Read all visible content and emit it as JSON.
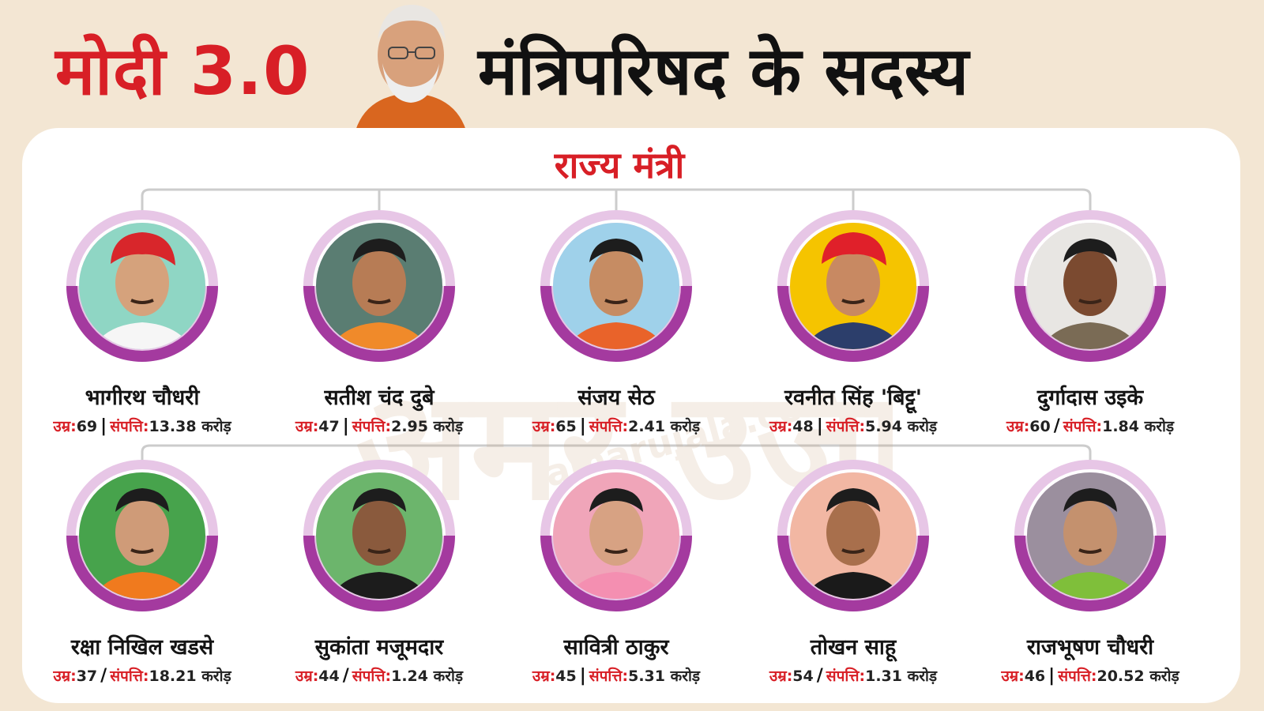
{
  "header": {
    "title_red": "मोदी 3.0",
    "title_black": "मंत्रिपरिषद के सदस्य",
    "leader_portrait": "narendra-modi-portrait"
  },
  "section": {
    "title": "राज्य मंत्री"
  },
  "labels": {
    "age": "उम्र:",
    "assets": "संपत्ति:",
    "crore": "करोड़"
  },
  "watermark": {
    "brand": "अमर उजाला",
    "site": "amarujala.com"
  },
  "colors": {
    "accent_red": "#d81f26",
    "ring_purple": "#a43a9f",
    "ring_light": "#e7c6e6",
    "background": "#f3e6d3"
  },
  "members": [
    {
      "name": "भागीरथ चौधरी",
      "age": "69",
      "sep": "|",
      "assets": "13.38"
    },
    {
      "name": "सतीश चंद दुबे",
      "age": "47",
      "sep": "|",
      "assets": "2.95"
    },
    {
      "name": "संजय सेठ",
      "age": "65",
      "sep": "|",
      "assets": "2.41"
    },
    {
      "name": "रवनीत सिंह 'बिट्टू'",
      "age": "48",
      "sep": "|",
      "assets": "5.94"
    },
    {
      "name": "दुर्गादास उइके",
      "age": "60",
      "sep": "/",
      "assets": "1.84"
    },
    {
      "name": "रक्षा निखिल खडसे",
      "age": "37",
      "sep": "/",
      "assets": "18.21"
    },
    {
      "name": "सुकांता मजूमदार",
      "age": "44",
      "sep": "/",
      "assets": "1.24"
    },
    {
      "name": "सावित्री ठाकुर",
      "age": "45",
      "sep": "|",
      "assets": "5.31"
    },
    {
      "name": "तोखन साहू",
      "age": "54",
      "sep": "/",
      "assets": "1.31"
    },
    {
      "name": "राजभूषण चौधरी",
      "age": "46",
      "sep": "|",
      "assets": "20.52"
    }
  ]
}
